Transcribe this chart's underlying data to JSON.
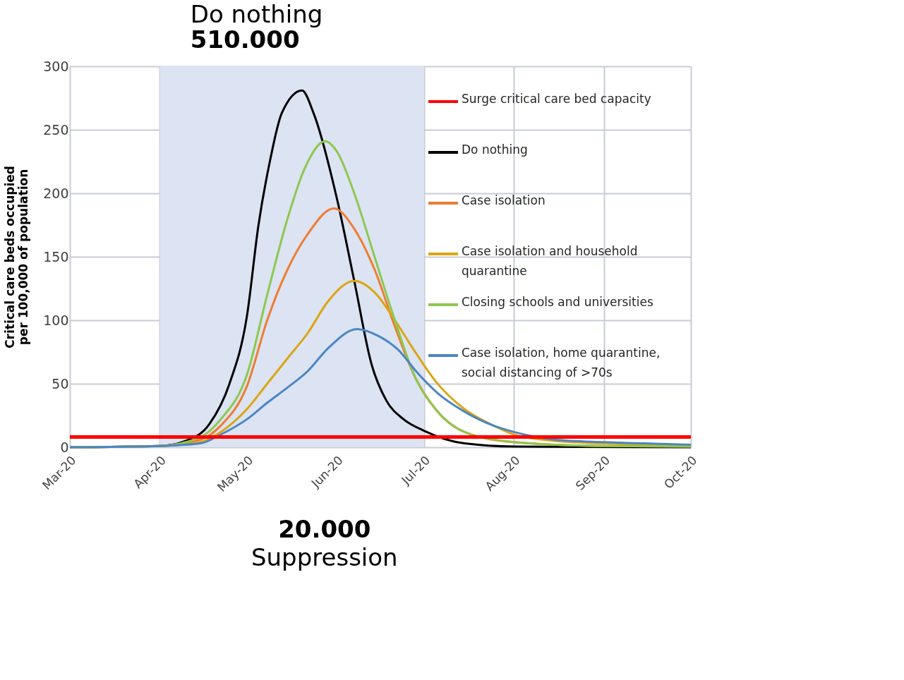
{
  "chart_data": {
    "type": "line",
    "title": "Do nothing",
    "subtitle": "510.000",
    "ylabel": "Critical care beds occupied per 100,000 of population",
    "annotations": [
      "20.000",
      "Suppression"
    ],
    "xlim": [
      "2020-03-01",
      "2020-10-01"
    ],
    "xticks": [
      {
        "value": "2020-03-01",
        "label": "Mar-20"
      },
      {
        "value": "2020-04-01",
        "label": "Apr-20"
      },
      {
        "value": "2020-05-01",
        "label": "May-20"
      },
      {
        "value": "2020-06-01",
        "label": "Jun-20"
      },
      {
        "value": "2020-07-01",
        "label": "Jul-20"
      },
      {
        "value": "2020-08-01",
        "label": "Aug-20"
      },
      {
        "value": "2020-09-01",
        "label": "Sep-20"
      },
      {
        "value": "2020-10-01",
        "label": "Oct-20"
      }
    ],
    "ylim": [
      0,
      300
    ],
    "yticks": [
      0,
      50,
      100,
      150,
      200,
      250,
      300
    ],
    "grid": true,
    "legend": "top right",
    "marker": "none",
    "line_style": "solid",
    "bands": [
      {
        "axis": "x",
        "from": "2020-04-01",
        "to": "2020-07-01",
        "color": "#dce3f2"
      }
    ],
    "series": [
      {
        "name": "Surge critical care bed capacity",
        "color": "#ff0000",
        "x": [
          "2020-03-01",
          "2020-10-01"
        ],
        "values": [
          8,
          8
        ]
      },
      {
        "name": "Do nothing",
        "color": "#000000",
        "x": [
          "2020-03-01",
          "2020-04-01",
          "2020-04-10",
          "2020-04-18",
          "2020-04-25",
          "2020-05-01",
          "2020-05-05",
          "2020-05-09",
          "2020-05-13",
          "2020-05-20",
          "2020-05-24",
          "2020-06-01",
          "2020-06-07",
          "2020-06-13",
          "2020-06-18",
          "2020-06-24",
          "2020-07-01",
          "2020-07-15",
          "2020-08-01",
          "2020-10-01"
        ],
        "values": [
          0,
          1,
          5,
          18,
          50,
          103,
          175,
          226,
          263,
          281,
          263,
          196,
          131,
          65,
          37,
          22,
          13,
          3,
          0.5,
          0
        ]
      },
      {
        "name": "Case isolation",
        "color": "#ed7d31",
        "x": [
          "2020-03-01",
          "2020-04-01",
          "2020-04-15",
          "2020-04-22",
          "2020-05-01",
          "2020-05-08",
          "2020-05-15",
          "2020-05-22",
          "2020-05-31",
          "2020-06-07",
          "2020-06-14",
          "2020-06-21",
          "2020-06-28",
          "2020-07-05",
          "2020-07-15",
          "2020-08-01",
          "2020-09-01",
          "2020-10-01"
        ],
        "values": [
          0,
          1,
          6,
          17,
          48,
          100,
          140,
          168,
          188,
          172,
          140,
          95,
          55,
          30,
          12,
          4,
          1,
          0.5
        ]
      },
      {
        "name": "Case isolation and household quarantine",
        "color": "#dba512",
        "x": [
          "2020-03-01",
          "2020-04-01",
          "2020-04-15",
          "2020-04-22",
          "2020-05-01",
          "2020-05-08",
          "2020-05-15",
          "2020-05-22",
          "2020-05-29",
          "2020-06-07",
          "2020-06-14",
          "2020-06-21",
          "2020-06-28",
          "2020-07-05",
          "2020-07-15",
          "2020-07-25",
          "2020-08-01",
          "2020-08-15",
          "2020-09-01",
          "2020-10-01"
        ],
        "values": [
          0,
          1,
          4,
          12,
          30,
          50,
          70,
          90,
          115,
          131,
          122,
          100,
          75,
          52,
          30,
          17,
          10,
          5,
          3,
          1
        ]
      },
      {
        "name": "Closing schools and universities",
        "color": "#8cc850",
        "x": [
          "2020-03-01",
          "2020-04-01",
          "2020-04-15",
          "2020-04-22",
          "2020-05-01",
          "2020-05-08",
          "2020-05-15",
          "2020-05-21",
          "2020-05-28",
          "2020-06-01",
          "2020-06-07",
          "2020-06-14",
          "2020-06-21",
          "2020-06-28",
          "2020-07-05",
          "2020-07-15",
          "2020-08-01",
          "2020-08-15",
          "2020-09-01",
          "2020-10-01"
        ],
        "values": [
          0,
          1,
          8,
          22,
          57,
          120,
          180,
          220,
          241,
          233,
          200,
          150,
          100,
          55,
          30,
          12,
          4,
          2,
          1,
          0.5
        ]
      },
      {
        "name": "Case isolation, home quarantine, social distancing of >70s",
        "color": "#4a86c5",
        "x": [
          "2020-03-01",
          "2020-04-01",
          "2020-04-15",
          "2020-04-22",
          "2020-05-01",
          "2020-05-08",
          "2020-05-15",
          "2020-05-22",
          "2020-05-29",
          "2020-06-08",
          "2020-06-15",
          "2020-06-22",
          "2020-06-29",
          "2020-07-06",
          "2020-07-15",
          "2020-07-25",
          "2020-08-01",
          "2020-08-15",
          "2020-09-01",
          "2020-09-15",
          "2020-10-01"
        ],
        "values": [
          0,
          1,
          3,
          10,
          22,
          35,
          47,
          60,
          78,
          93,
          88,
          77,
          58,
          42,
          28,
          17,
          12,
          6,
          4,
          3,
          2
        ]
      }
    ]
  }
}
